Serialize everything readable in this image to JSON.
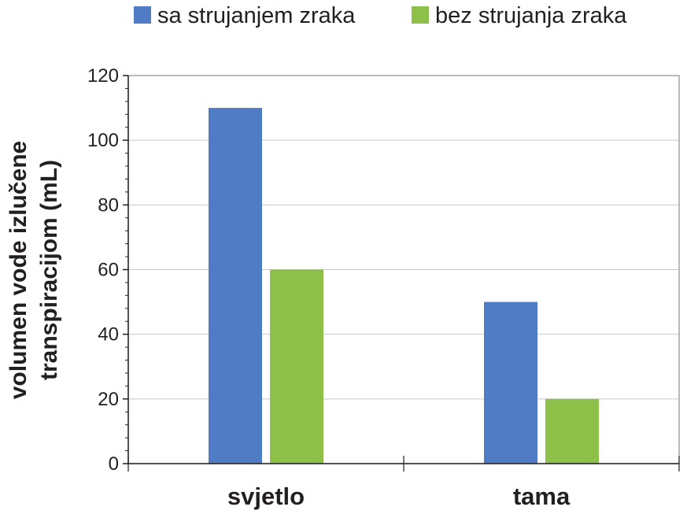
{
  "chart_data": {
    "type": "bar",
    "categories": [
      "svjetlo",
      "tama"
    ],
    "series": [
      {
        "name": "sa strujanjem zraka",
        "values": [
          110,
          50
        ],
        "color": "#4f7cc4"
      },
      {
        "name": "bez strujanja zraka",
        "values": [
          60,
          20
        ],
        "color": "#8dc049"
      }
    ],
    "ylabel_lines": [
      "volumen vode izlučene",
      "transpiracijom (mL)"
    ],
    "ylim": [
      0,
      120
    ],
    "yticks": [
      0,
      20,
      40,
      60,
      80,
      100,
      120
    ],
    "grid": true,
    "legend_position": "top"
  }
}
